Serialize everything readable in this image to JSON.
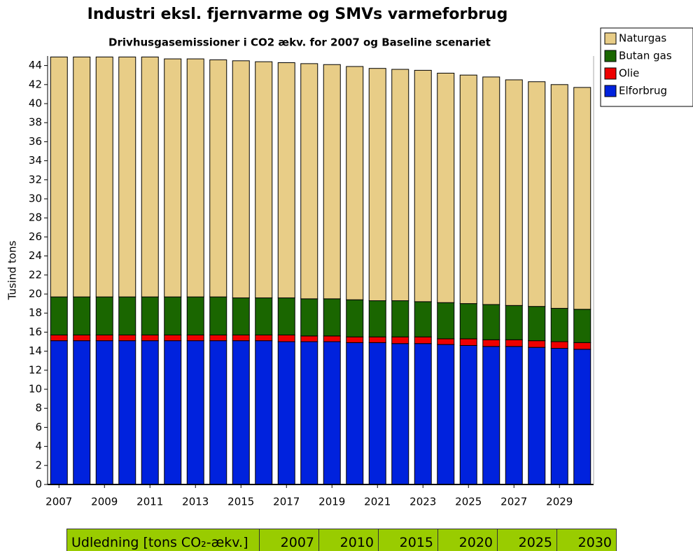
{
  "chart_data": {
    "type": "stacked_bar",
    "title": "Industri eksl. fjernvarme og SMVs varmeforbrug",
    "subtitle": "Drivhusgasemissioner i CO2 ækv. for 2007 og Baseline scenariet",
    "y_label": "Tusind tons",
    "categories": [
      "2007",
      null,
      "2009",
      null,
      "2011",
      null,
      "2013",
      null,
      "2015",
      null,
      "2017",
      null,
      "2019",
      null,
      "2021",
      null,
      "2023",
      null,
      "2025",
      null,
      "2027",
      null,
      "2029",
      null
    ],
    "series": [
      {
        "name": "Elforbrug",
        "color": "#0022dd",
        "values": [
          15.1,
          15.1,
          15.1,
          15.1,
          15.1,
          15.1,
          15.1,
          15.1,
          15.1,
          15.1,
          15.0,
          15.0,
          15.0,
          14.9,
          14.9,
          14.8,
          14.8,
          14.7,
          14.6,
          14.5,
          14.5,
          14.4,
          14.3,
          14.2
        ]
      },
      {
        "name": "Olie",
        "color": "#ee0000",
        "values": [
          0.6,
          0.6,
          0.6,
          0.6,
          0.6,
          0.6,
          0.6,
          0.6,
          0.6,
          0.6,
          0.7,
          0.6,
          0.6,
          0.6,
          0.6,
          0.7,
          0.7,
          0.6,
          0.7,
          0.7,
          0.7,
          0.7,
          0.7,
          0.7
        ]
      },
      {
        "name": "Butan gas",
        "color": "#1a6600",
        "values": [
          4.0,
          4.0,
          4.0,
          4.0,
          4.0,
          4.0,
          4.0,
          4.0,
          3.9,
          3.9,
          3.9,
          3.9,
          3.9,
          3.9,
          3.8,
          3.8,
          3.7,
          3.8,
          3.7,
          3.7,
          3.6,
          3.6,
          3.5,
          3.5
        ]
      },
      {
        "name": "Naturgas",
        "color": "#e8cd87",
        "values": [
          25.2,
          25.2,
          25.2,
          25.2,
          25.2,
          25.0,
          25.0,
          24.9,
          24.9,
          24.8,
          24.7,
          24.7,
          24.6,
          24.5,
          24.4,
          24.3,
          24.3,
          24.1,
          24.0,
          23.9,
          23.7,
          23.6,
          23.5,
          23.3
        ]
      }
    ],
    "ylim": [
      0,
      45
    ],
    "yticks": [
      0,
      2,
      4,
      6,
      8,
      10,
      12,
      14,
      16,
      18,
      20,
      22,
      24,
      26,
      28,
      30,
      32,
      34,
      36,
      38,
      40,
      42,
      44
    ],
    "legend": "right"
  },
  "table": {
    "header": [
      "Udledning [tons CO₂-ækv.]",
      "2007",
      "2010",
      "2015",
      "2020",
      "2025",
      "2030"
    ]
  }
}
